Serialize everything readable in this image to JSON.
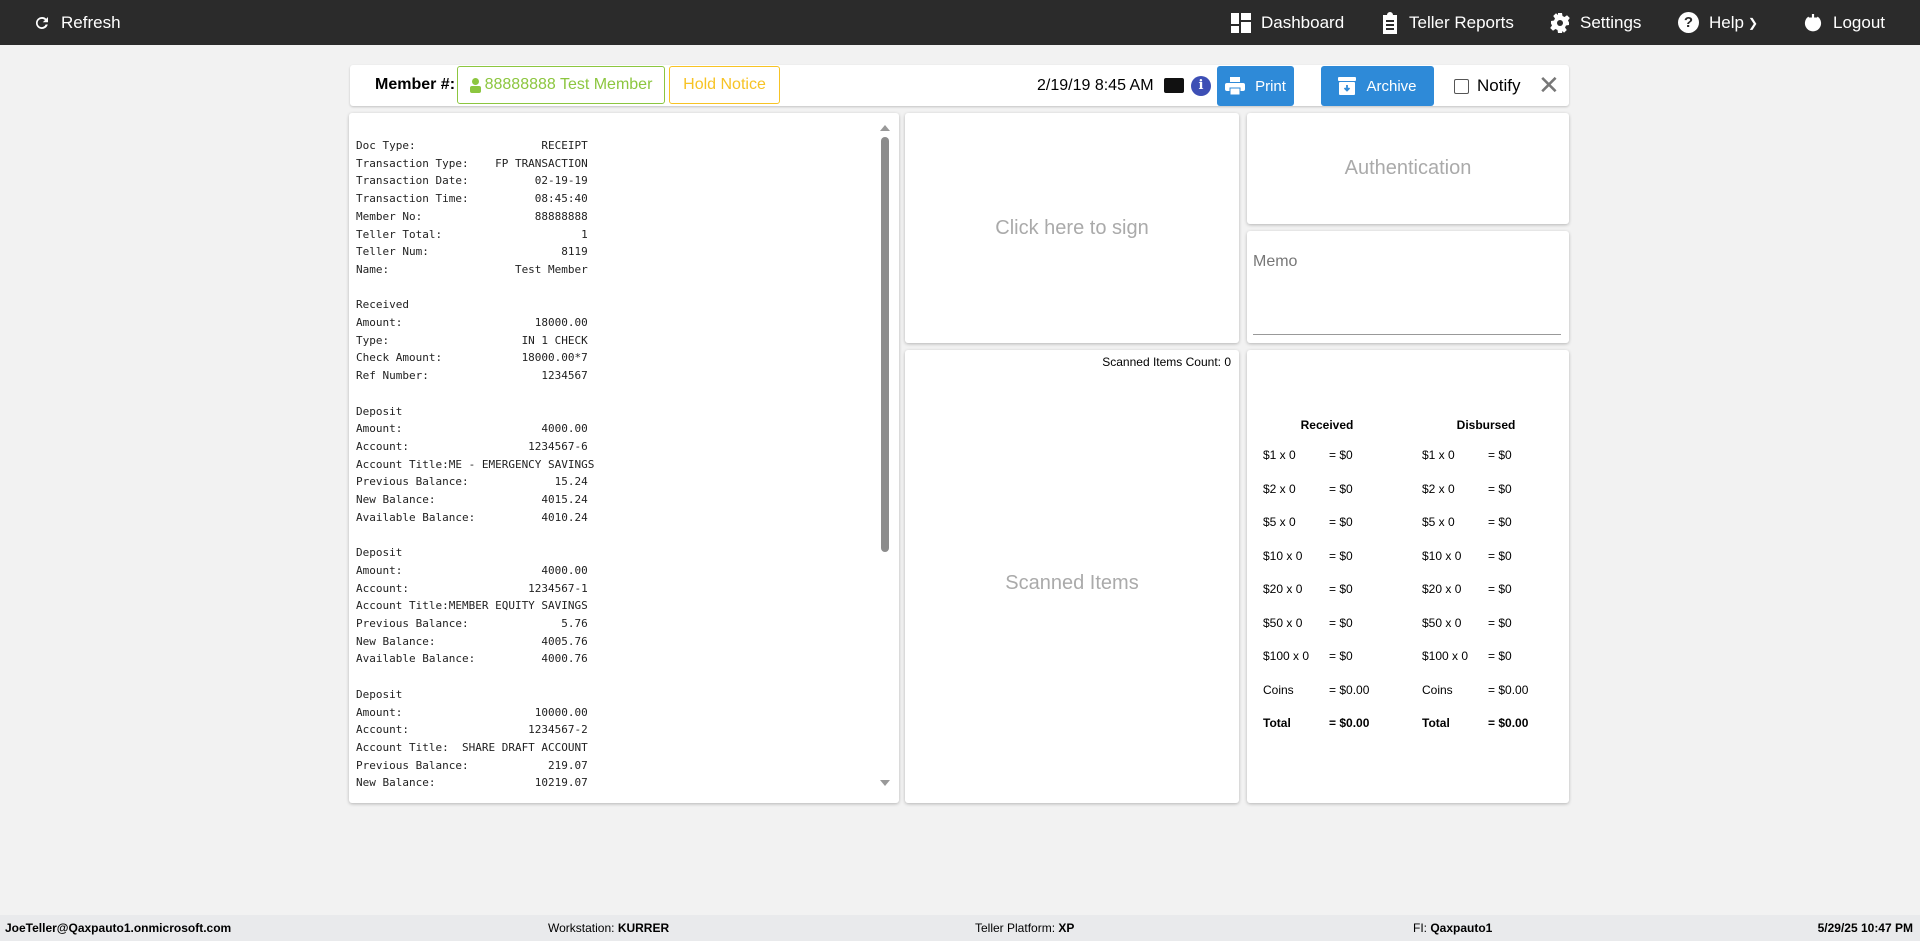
{
  "topbar": {
    "refresh": "Refresh",
    "dashboard": "Dashboard",
    "reports": "Teller Reports",
    "settings": "Settings",
    "help": "Help",
    "logout": "Logout"
  },
  "header": {
    "member_label": "Member #:",
    "member_value": "88888888 Test Member",
    "hold_notice": "Hold Notice",
    "datetime": "2/19/19 8:45 AM",
    "print": "Print",
    "archive": "Archive",
    "notify": "Notify",
    "notify_checked": false
  },
  "receipt": [
    [
      "Doc Type:",
      "RECEIPT"
    ],
    [
      "Transaction Type:",
      "FP TRANSACTION"
    ],
    [
      "Transaction Date:",
      "02-19-19"
    ],
    [
      "Transaction Time:",
      "08:45:40"
    ],
    [
      "Member No:",
      "88888888"
    ],
    [
      "Teller Total:",
      "1"
    ],
    [
      "Teller Num:",
      "8119"
    ],
    [
      "Name:",
      "Test Member"
    ],
    [
      "",
      ""
    ],
    [
      "Received",
      ""
    ],
    [
      "Amount:",
      "18000.00"
    ],
    [
      "Type:",
      "IN 1 CHECK"
    ],
    [
      "Check Amount:",
      "18000.00*7"
    ],
    [
      "Ref Number:",
      "1234567"
    ],
    [
      "",
      ""
    ],
    [
      "Deposit",
      ""
    ],
    [
      "Amount:",
      "4000.00"
    ],
    [
      "Account:",
      "1234567-6"
    ],
    [
      "Account Title:ME - EMERGENCY SAVINGS",
      ""
    ],
    [
      "Previous Balance:",
      "15.24"
    ],
    [
      "New Balance:",
      "4015.24"
    ],
    [
      "Available Balance:",
      "4010.24"
    ],
    [
      "",
      ""
    ],
    [
      "Deposit",
      ""
    ],
    [
      "Amount:",
      "4000.00"
    ],
    [
      "Account:",
      "1234567-1"
    ],
    [
      "Account Title:MEMBER EQUITY SAVINGS",
      ""
    ],
    [
      "Previous Balance:",
      "5.76"
    ],
    [
      "New Balance:",
      "4005.76"
    ],
    [
      "Available Balance:",
      "4000.76"
    ],
    [
      "",
      ""
    ],
    [
      "Deposit",
      ""
    ],
    [
      "Amount:",
      "10000.00"
    ],
    [
      "Account:",
      "1234567-2"
    ],
    [
      "Account Title:  SHARE DRAFT ACCOUNT",
      ""
    ],
    [
      "Previous Balance:",
      "219.07"
    ],
    [
      "New Balance:",
      "10219.07"
    ]
  ],
  "sign": {
    "label": "Click here to sign"
  },
  "scanned": {
    "count_label": "Scanned Items Count: 0",
    "label": "Scanned Items"
  },
  "auth": {
    "label": "Authentication"
  },
  "memo": {
    "label": "Memo",
    "value": ""
  },
  "cash": {
    "received": {
      "title": "Received",
      "rows": [
        [
          "$1 x 0",
          "= $0"
        ],
        [
          "$2 x 0",
          "= $0"
        ],
        [
          "$5 x 0",
          "= $0"
        ],
        [
          "$10 x 0",
          "= $0"
        ],
        [
          "$20 x 0",
          "= $0"
        ],
        [
          "$50 x 0",
          "= $0"
        ],
        [
          "$100 x 0",
          "= $0"
        ],
        [
          "Coins",
          "= $0.00"
        ],
        [
          "Total",
          "= $0.00"
        ]
      ]
    },
    "disbursed": {
      "title": "Disbursed",
      "rows": [
        [
          "$1 x 0",
          "= $0"
        ],
        [
          "$2 x 0",
          "= $0"
        ],
        [
          "$5 x 0",
          "= $0"
        ],
        [
          "$10 x 0",
          "= $0"
        ],
        [
          "$20 x 0",
          "= $0"
        ],
        [
          "$50 x 0",
          "= $0"
        ],
        [
          "$100 x 0",
          "= $0"
        ],
        [
          "Coins",
          "= $0.00"
        ],
        [
          "Total",
          "= $0.00"
        ]
      ]
    }
  },
  "footer": {
    "user": "JoeTeller@Qaxpauto1.onmicrosoft.com",
    "workstation_label": "Workstation:",
    "workstation": "KURRER",
    "platform_label": "Teller Platform:",
    "platform": "XP",
    "fi_label": "FI:",
    "fi": "Qaxpauto1",
    "datetime": "5/29/25 10:47 PM"
  },
  "colors": {
    "topbar": "#2b2b2b",
    "primary": "#2e8ad8",
    "member": "#8cc63f",
    "hold": "#f7c325"
  }
}
